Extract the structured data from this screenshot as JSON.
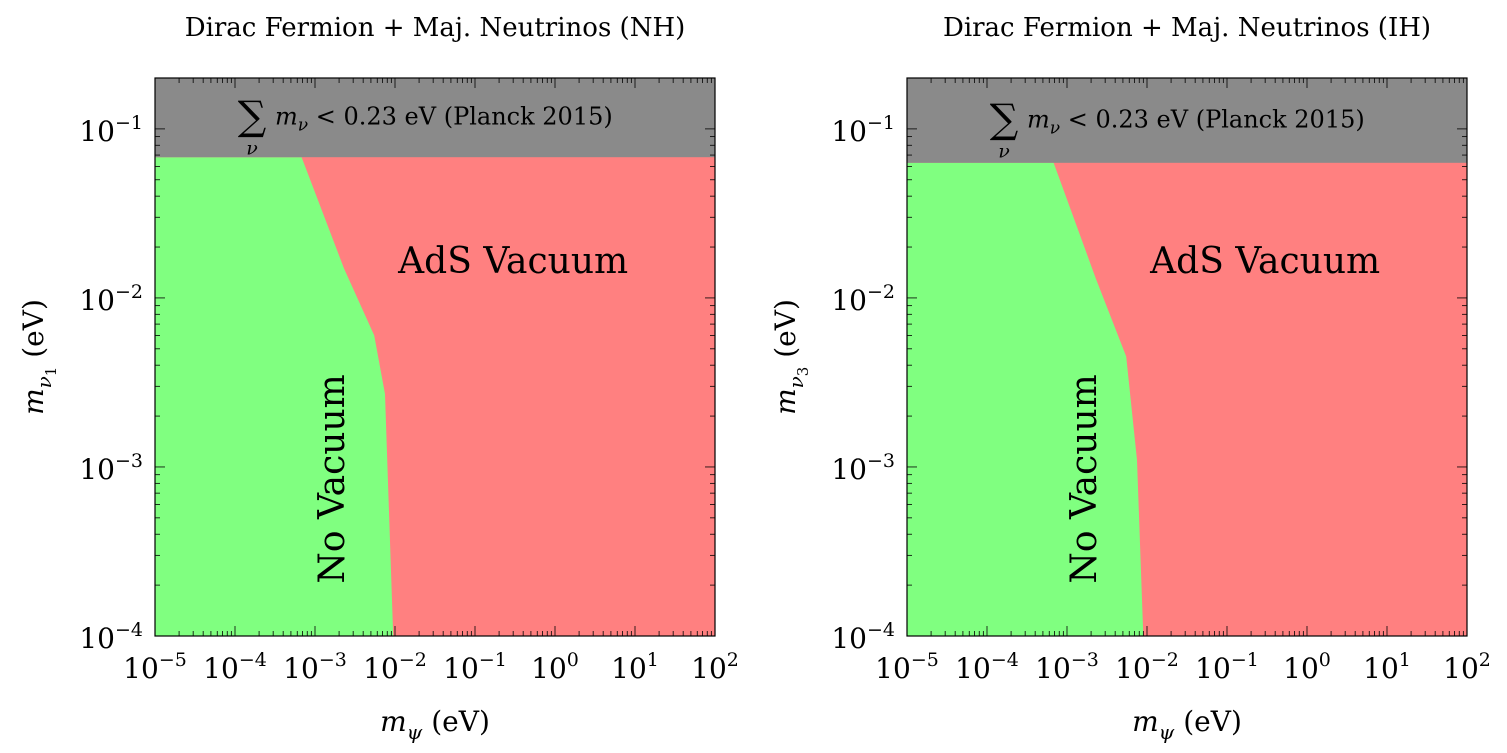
{
  "colors": {
    "no_vacuum": "#80ff80",
    "ads_vacuum": "#ff8080",
    "excluded": "#8a8a8a"
  },
  "chart_data": [
    {
      "type": "area",
      "title": "Dirac Fermion + Maj. Neutrinos (NH)",
      "xlabel_main": "m",
      "xlabel_sub": "ψ",
      "xlabel_unit": " (eV)",
      "ylabel_main": "m",
      "ylabel_sub": "ν",
      "ylabel_subsub": "1",
      "ylabel_unit": " (eV)",
      "xscale": "log",
      "yscale": "log",
      "xlim": [
        1e-05,
        100
      ],
      "ylim": [
        0.0001,
        0.2
      ],
      "xticks": [
        {
          "value": 1e-05,
          "base": "10",
          "exp": "−5"
        },
        {
          "value": 0.0001,
          "base": "10",
          "exp": "−4"
        },
        {
          "value": 0.001,
          "base": "10",
          "exp": "−3"
        },
        {
          "value": 0.01,
          "base": "10",
          "exp": "−2"
        },
        {
          "value": 0.1,
          "base": "10",
          "exp": "−1"
        },
        {
          "value": 1,
          "base": "10",
          "exp": "0"
        },
        {
          "value": 10,
          "base": "10",
          "exp": "1"
        },
        {
          "value": 100,
          "base": "10",
          "exp": "2"
        }
      ],
      "yticks": [
        {
          "value": 0.0001,
          "base": "10",
          "exp": "−4"
        },
        {
          "value": 0.001,
          "base": "10",
          "exp": "−3"
        },
        {
          "value": 0.01,
          "base": "10",
          "exp": "−2"
        },
        {
          "value": 0.1,
          "base": "10",
          "exp": "−1"
        }
      ],
      "planck_limit": 0.068,
      "planck_text_sum": "∑",
      "planck_text_sub": "ν",
      "planck_text_m": "m",
      "planck_text_msub": "ν",
      "planck_text_rest": " < 0.23 eV (Planck 2015)",
      "boundary": [
        {
          "x": 0.00068,
          "y": 0.068
        },
        {
          "x": 0.0023,
          "y": 0.015
        },
        {
          "x": 0.0055,
          "y": 0.006
        },
        {
          "x": 0.0075,
          "y": 0.0027
        },
        {
          "x": 0.0095,
          "y": 0.0001
        }
      ],
      "regions": {
        "ads": {
          "text": "AdS Vacuum",
          "x": 0.3,
          "y": 0.014
        },
        "none": {
          "text": "No Vacuum",
          "x": 0.0023,
          "y": 0.00085
        }
      }
    },
    {
      "type": "area",
      "title": "Dirac Fermion + Maj. Neutrinos (IH)",
      "xlabel_main": "m",
      "xlabel_sub": "ψ",
      "xlabel_unit": " (eV)",
      "ylabel_main": "m",
      "ylabel_sub": "ν",
      "ylabel_subsub": "3",
      "ylabel_unit": " (eV)",
      "xscale": "log",
      "yscale": "log",
      "xlim": [
        1e-05,
        100
      ],
      "ylim": [
        0.0001,
        0.2
      ],
      "xticks": [
        {
          "value": 1e-05,
          "base": "10",
          "exp": "−5"
        },
        {
          "value": 0.0001,
          "base": "10",
          "exp": "−4"
        },
        {
          "value": 0.001,
          "base": "10",
          "exp": "−3"
        },
        {
          "value": 0.01,
          "base": "10",
          "exp": "−2"
        },
        {
          "value": 0.1,
          "base": "10",
          "exp": "−1"
        },
        {
          "value": 1,
          "base": "10",
          "exp": "0"
        },
        {
          "value": 10,
          "base": "10",
          "exp": "1"
        },
        {
          "value": 100,
          "base": "10",
          "exp": "2"
        }
      ],
      "yticks": [
        {
          "value": 0.0001,
          "base": "10",
          "exp": "−4"
        },
        {
          "value": 0.001,
          "base": "10",
          "exp": "−3"
        },
        {
          "value": 0.01,
          "base": "10",
          "exp": "−2"
        },
        {
          "value": 0.1,
          "base": "10",
          "exp": "−1"
        }
      ],
      "planck_limit": 0.063,
      "planck_text_sum": "∑",
      "planck_text_sub": "ν",
      "planck_text_m": "m",
      "planck_text_msub": "ν",
      "planck_text_rest": " < 0.23 eV (Planck 2015)",
      "boundary": [
        {
          "x": 0.00068,
          "y": 0.063
        },
        {
          "x": 0.0023,
          "y": 0.013
        },
        {
          "x": 0.0055,
          "y": 0.0045
        },
        {
          "x": 0.0075,
          "y": 0.0011
        },
        {
          "x": 0.009,
          "y": 0.0001
        }
      ],
      "regions": {
        "ads": {
          "text": "AdS Vacuum",
          "x": 0.3,
          "y": 0.014
        },
        "none": {
          "text": "No Vacuum",
          "x": 0.0023,
          "y": 0.00085
        }
      }
    }
  ]
}
